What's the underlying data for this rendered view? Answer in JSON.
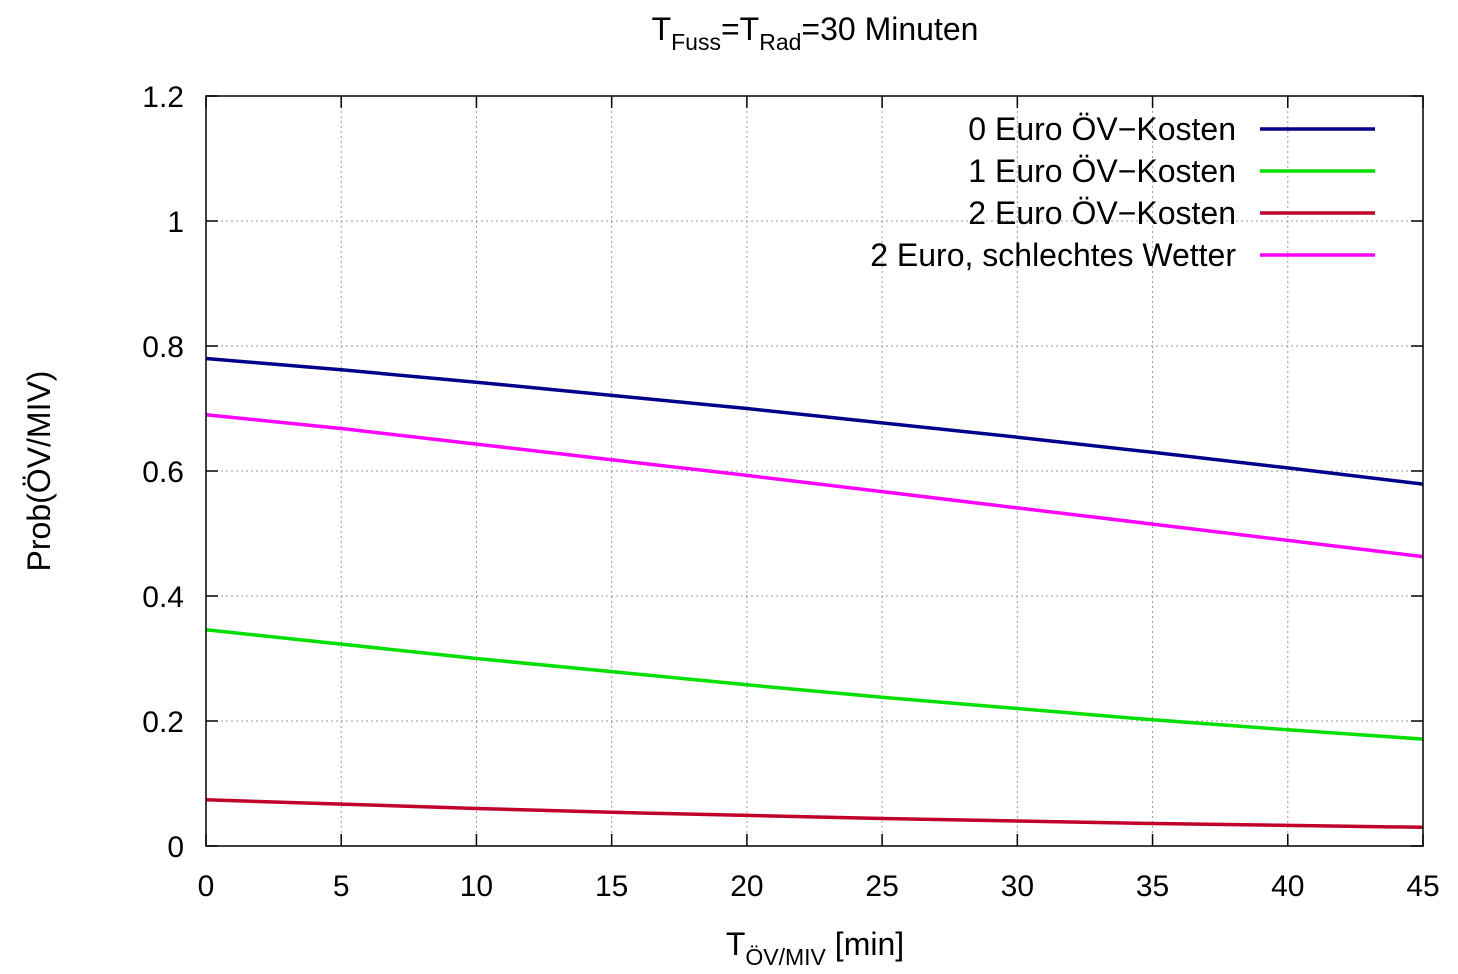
{
  "chart_data": {
    "type": "line",
    "title": {
      "base1": "T",
      "sub1": "Fuss",
      "mid": "=T",
      "sub2": "Rad",
      "end": "=30 Minuten"
    },
    "xlabel": {
      "base": "T",
      "sub": "ÖV/MIV",
      "end": " [min]"
    },
    "ylabel": "Prob(ÖV/MIV)",
    "xlim": [
      0,
      45
    ],
    "ylim": [
      0,
      1.2
    ],
    "xticks": [
      0,
      5,
      10,
      15,
      20,
      25,
      30,
      35,
      40,
      45
    ],
    "yticks": [
      0,
      0.2,
      0.4,
      0.6,
      0.8,
      1,
      1.2
    ],
    "ytick_labels": [
      "0",
      "0.2",
      "0.4",
      "0.6",
      "0.8",
      "1",
      "1.2"
    ],
    "grid": true,
    "legend_position": "top-right",
    "x": [
      0,
      5,
      10,
      15,
      20,
      25,
      30,
      35,
      40,
      45
    ],
    "series": [
      {
        "name": "0 Euro ÖV−Kosten",
        "color": "#00008b",
        "values": [
          0.78,
          0.762,
          0.742,
          0.721,
          0.7,
          0.677,
          0.654,
          0.63,
          0.605,
          0.579
        ]
      },
      {
        "name": "1 Euro ÖV−Kosten",
        "color": "#00e000",
        "values": [
          0.346,
          0.323,
          0.3,
          0.279,
          0.258,
          0.238,
          0.22,
          0.202,
          0.186,
          0.171
        ]
      },
      {
        "name": "2 Euro ÖV−Kosten",
        "color": "#c0002a",
        "values": [
          0.074,
          0.067,
          0.06,
          0.054,
          0.049,
          0.044,
          0.04,
          0.036,
          0.033,
          0.03
        ]
      },
      {
        "name": "2 Euro, schlechtes Wetter",
        "color": "#ff00ff",
        "values": [
          0.69,
          0.668,
          0.643,
          0.618,
          0.593,
          0.567,
          0.541,
          0.515,
          0.489,
          0.463
        ]
      }
    ]
  }
}
